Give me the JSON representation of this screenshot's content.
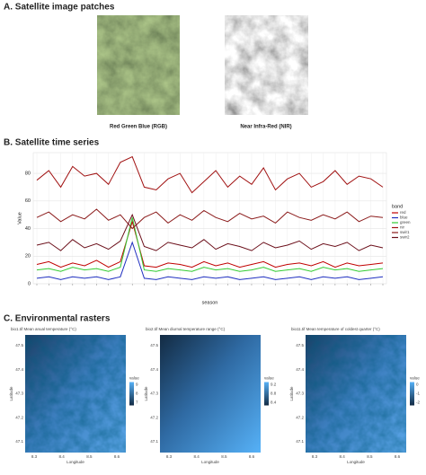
{
  "panels": {
    "a_title": "A. Satellite image patches",
    "rgb_caption": "Red Green Blue (RGB)",
    "nir_caption": "Near Infra-Red (NIR)",
    "b_title": "B. Satellite time series",
    "c_title": "C. Environmental rasters"
  },
  "chart_data": {
    "type": "line",
    "x_label": "season",
    "y_label": "Value",
    "legend_title": "band",
    "categories": [
      null,
      null,
      null,
      null,
      null,
      null,
      null,
      null,
      null,
      null,
      null,
      null,
      null,
      null,
      null,
      null,
      null,
      null,
      null,
      null,
      null,
      null,
      null,
      null,
      null,
      null,
      null,
      null,
      null,
      null
    ],
    "ylim": [
      0,
      95
    ],
    "yticks": [
      0,
      20,
      40,
      60,
      80
    ],
    "grid": true,
    "series": [
      {
        "name": "red",
        "color": "#c00000",
        "values": [
          14,
          16,
          12,
          15,
          13,
          17,
          12,
          16,
          45,
          13,
          12,
          15,
          14,
          12,
          16,
          13,
          15,
          12,
          14,
          16,
          12,
          14,
          15,
          13,
          16,
          12,
          15,
          13,
          14,
          15
        ]
      },
      {
        "name": "blue",
        "color": "#1f2fc0",
        "values": [
          4,
          5,
          3,
          5,
          4,
          5,
          3,
          5,
          30,
          4,
          3,
          5,
          4,
          3,
          5,
          4,
          5,
          3,
          4,
          5,
          3,
          4,
          5,
          3,
          5,
          4,
          5,
          3,
          4,
          5
        ]
      },
      {
        "name": "green",
        "color": "#33cc33",
        "values": [
          10,
          11,
          9,
          12,
          10,
          11,
          9,
          12,
          48,
          10,
          9,
          11,
          10,
          9,
          12,
          10,
          11,
          9,
          10,
          12,
          9,
          10,
          11,
          9,
          12,
          10,
          11,
          9,
          10,
          11
        ]
      },
      {
        "name": "nir",
        "color": "#a01010",
        "values": [
          75,
          82,
          70,
          85,
          78,
          80,
          72,
          88,
          92,
          70,
          68,
          76,
          80,
          66,
          74,
          82,
          70,
          78,
          72,
          84,
          68,
          76,
          80,
          70,
          74,
          82,
          72,
          78,
          76,
          70
        ]
      },
      {
        "name": "swir1",
        "color": "#8b1a1a",
        "values": [
          48,
          52,
          45,
          50,
          47,
          54,
          46,
          50,
          40,
          48,
          52,
          44,
          50,
          46,
          53,
          48,
          45,
          51,
          47,
          49,
          44,
          52,
          48,
          46,
          50,
          47,
          52,
          45,
          49,
          48
        ]
      },
      {
        "name": "swir2",
        "color": "#6b0f1a",
        "values": [
          28,
          30,
          24,
          32,
          26,
          29,
          25,
          31,
          50,
          27,
          24,
          30,
          28,
          26,
          32,
          25,
          29,
          27,
          24,
          30,
          26,
          28,
          31,
          25,
          29,
          27,
          30,
          24,
          28,
          26
        ]
      }
    ]
  },
  "rasters": {
    "x_label": "Longitude",
    "y_label": "Latitude",
    "legend_title": "value",
    "lon_ticks": [
      "8.3",
      "8.4",
      "8.5",
      "8.6"
    ],
    "lat_ticks": [
      "47.5",
      "47.4",
      "47.3",
      "47.2",
      "47.1"
    ],
    "maps": [
      {
        "title": "bio1.tif   Mean anual temperature (°C)",
        "colorbar_ticks": [
          "9",
          "8",
          "7"
        ]
      },
      {
        "title": "bio2.tif   Mean diurnal temperature range (°C)",
        "colorbar_ticks": [
          "9.2",
          "8.8",
          "8.4"
        ]
      },
      {
        "title": "bio11.tif   Mean temperature of coldest quarter (°C)",
        "colorbar_ticks": [
          "0",
          "-1",
          "-2"
        ]
      }
    ]
  }
}
